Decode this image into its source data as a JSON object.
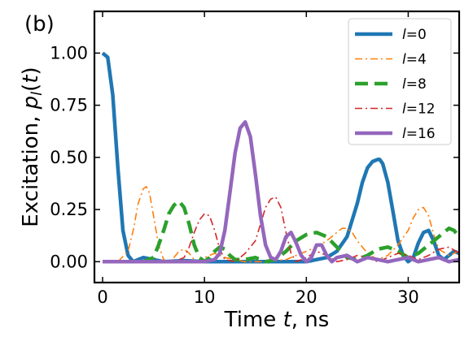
{
  "chart_data": {
    "type": "line",
    "panel_label": "(b)",
    "xlabel": {
      "pre": "Time ",
      "var": "t",
      "post": ", ns"
    },
    "ylabel": {
      "pre": "Excitation, ",
      "var": "p",
      "sub": "l",
      "open": "(",
      "arg": "t",
      "close": ")"
    },
    "xlim": [
      -0.8,
      35
    ],
    "ylim": [
      -0.1,
      1.2
    ],
    "xticks": [
      0,
      10,
      20,
      30
    ],
    "xtick_labels": [
      "0",
      "10",
      "20",
      "30"
    ],
    "yticks": [
      0.0,
      0.25,
      0.5,
      0.75,
      1.0
    ],
    "ytick_labels": [
      "0.00",
      "0.25",
      "0.50",
      "0.75",
      "1.00"
    ],
    "grid": false,
    "legend_position": "top-right",
    "series": [
      {
        "name": "l=0",
        "label_var": "l",
        "label_val": "=0",
        "color": "#1f77b4",
        "style": "solid",
        "width": 4.5,
        "x": [
          0,
          0.5,
          1,
          1.5,
          2,
          2.5,
          3,
          3.5,
          4,
          4.5,
          5,
          6,
          8,
          10,
          12,
          14,
          16,
          18,
          20,
          22,
          23,
          24,
          25,
          25.5,
          26,
          26.5,
          27,
          27.2,
          27.5,
          28,
          28.5,
          29,
          29.5,
          30,
          30.5,
          31,
          31.5,
          32,
          32.5,
          33,
          33.5,
          34,
          34.5,
          35
        ],
        "y": [
          1.0,
          0.98,
          0.8,
          0.45,
          0.15,
          0.03,
          0.0,
          0.01,
          0.02,
          0.015,
          0.01,
          0.0,
          0.005,
          0.0,
          0.0,
          0.0,
          0.0,
          0.0,
          0.0,
          0.02,
          0.05,
          0.12,
          0.28,
          0.38,
          0.45,
          0.48,
          0.49,
          0.49,
          0.47,
          0.38,
          0.24,
          0.1,
          0.03,
          0.0,
          0.02,
          0.09,
          0.14,
          0.15,
          0.1,
          0.03,
          0.01,
          0.03,
          0.05,
          0.04
        ]
      },
      {
        "name": "l=4",
        "label_var": "l",
        "label_val": "=4",
        "color": "#ff7f0e",
        "style": "dashdot",
        "width": 1.6,
        "x": [
          0,
          1.5,
          2.5,
          3,
          3.5,
          4,
          4.3,
          4.6,
          5,
          5.5,
          6,
          6.5,
          7,
          7.5,
          8,
          8.5,
          9,
          9.5,
          10,
          11,
          12,
          14,
          16,
          18,
          19,
          20,
          21,
          22,
          23,
          23.5,
          24,
          24.5,
          25,
          26,
          27,
          28,
          29,
          30,
          30.5,
          31,
          31.5,
          32,
          32.5,
          33,
          34,
          35
        ],
        "y": [
          0.0,
          0.0,
          0.05,
          0.15,
          0.28,
          0.35,
          0.36,
          0.33,
          0.22,
          0.08,
          0.01,
          0.0,
          0.02,
          0.05,
          0.06,
          0.04,
          0.01,
          0.0,
          0.02,
          0.04,
          0.02,
          0.0,
          0.0,
          0.01,
          0.03,
          0.05,
          0.07,
          0.1,
          0.14,
          0.16,
          0.16,
          0.14,
          0.1,
          0.04,
          0.01,
          0.03,
          0.08,
          0.15,
          0.21,
          0.25,
          0.26,
          0.22,
          0.13,
          0.06,
          0.03,
          0.05
        ]
      },
      {
        "name": "l=8",
        "label_var": "l",
        "label_val": "=8",
        "color": "#2ca02c",
        "style": "dashed",
        "width": 4.5,
        "x": [
          0,
          4,
          5,
          5.5,
          6,
          6.5,
          7,
          7.5,
          8,
          8.5,
          9,
          9.5,
          10,
          10.5,
          11,
          11.5,
          12,
          12.5,
          13,
          14,
          15,
          16,
          17,
          18,
          19,
          20,
          21,
          22,
          23,
          24,
          25,
          26,
          27,
          28,
          29,
          30,
          31,
          32,
          33,
          33.5,
          34,
          34.5,
          35
        ],
        "y": [
          0.0,
          0.0,
          0.02,
          0.08,
          0.15,
          0.23,
          0.27,
          0.29,
          0.26,
          0.18,
          0.08,
          0.02,
          0.0,
          0.02,
          0.05,
          0.07,
          0.06,
          0.03,
          0.01,
          0.01,
          0.02,
          0.0,
          0.01,
          0.05,
          0.1,
          0.13,
          0.14,
          0.12,
          0.07,
          0.02,
          0.01,
          0.03,
          0.06,
          0.07,
          0.05,
          0.02,
          0.04,
          0.08,
          0.12,
          0.14,
          0.16,
          0.15,
          0.12
        ]
      },
      {
        "name": "l=12",
        "label_var": "l",
        "label_val": "=12",
        "color": "#d62728",
        "style": "dashdot",
        "width": 1.6,
        "x": [
          0,
          7,
          8,
          8.5,
          9,
          9.5,
          10,
          10.5,
          11,
          11.5,
          12,
          13,
          14,
          15,
          15.5,
          16,
          16.5,
          17,
          17.5,
          18,
          18.5,
          19,
          20,
          21,
          22,
          23,
          24,
          25,
          26,
          27,
          28,
          29,
          30,
          31,
          32,
          33,
          34,
          35
        ],
        "y": [
          0.0,
          0.0,
          0.02,
          0.07,
          0.14,
          0.2,
          0.23,
          0.22,
          0.15,
          0.06,
          0.01,
          0.0,
          0.04,
          0.1,
          0.18,
          0.26,
          0.3,
          0.31,
          0.26,
          0.14,
          0.04,
          0.0,
          0.02,
          0.05,
          0.03,
          0.0,
          0.01,
          0.03,
          0.02,
          0.0,
          0.02,
          0.04,
          0.03,
          0.01,
          0.03,
          0.06,
          0.07,
          0.04
        ]
      },
      {
        "name": "l=16",
        "label_var": "l",
        "label_val": "=16",
        "color": "#9467bd",
        "style": "solid",
        "width": 4.5,
        "x": [
          0,
          5,
          8,
          10,
          11,
          11.5,
          12,
          12.5,
          13,
          13.5,
          14,
          14.5,
          15,
          15.5,
          16,
          16.5,
          17,
          17.5,
          18,
          18.5,
          19,
          19.5,
          20,
          20.5,
          21,
          21.5,
          22,
          22.5,
          23,
          24,
          25,
          26,
          27,
          28,
          29,
          30,
          31,
          32,
          33,
          34,
          35
        ],
        "y": [
          0.0,
          0.0,
          0.0,
          0.0,
          0.01,
          0.04,
          0.15,
          0.33,
          0.52,
          0.64,
          0.67,
          0.6,
          0.42,
          0.22,
          0.08,
          0.02,
          0.01,
          0.05,
          0.12,
          0.14,
          0.09,
          0.03,
          0.0,
          0.02,
          0.08,
          0.08,
          0.03,
          0.0,
          0.02,
          0.03,
          0.0,
          0.02,
          0.01,
          0.0,
          0.01,
          0.02,
          0.0,
          0.01,
          0.02,
          0.0,
          0.01
        ]
      }
    ]
  }
}
